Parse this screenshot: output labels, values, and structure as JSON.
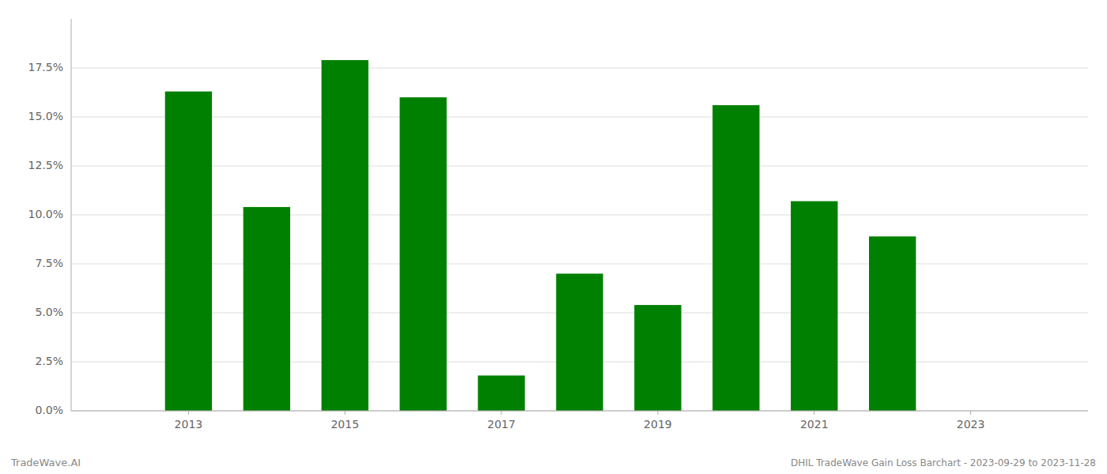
{
  "chart_data": {
    "type": "bar",
    "title": "DHIL TradeWave Gain Loss Barchart - 2023-09-29 to 2023-11-28",
    "annotations": [
      "TradeWave.AI"
    ],
    "x": [
      2013,
      2014,
      2015,
      2016,
      2017,
      2018,
      2019,
      2020,
      2021,
      2022,
      2023
    ],
    "values": [
      0.163,
      0.104,
      0.179,
      0.16,
      0.018,
      0.07,
      0.054,
      0.156,
      0.107,
      0.089,
      null
    ],
    "color": "#008000",
    "xlim": [
      2011.5,
      2024.5
    ],
    "xticks": [
      2013,
      2015,
      2017,
      2019,
      2021,
      2023
    ],
    "ylim": [
      0.0,
      0.2
    ],
    "yticks": [
      {
        "value": 0.0,
        "label": "0.0%"
      },
      {
        "value": 0.025,
        "label": "2.5%"
      },
      {
        "value": 0.05,
        "label": "5.0%"
      },
      {
        "value": 0.075,
        "label": "7.5%"
      },
      {
        "value": 0.1,
        "label": "10.0%"
      },
      {
        "value": 0.125,
        "label": "12.5%"
      },
      {
        "value": 0.15,
        "label": "15.0%"
      },
      {
        "value": 0.175,
        "label": "17.5%"
      }
    ],
    "grid": true
  }
}
